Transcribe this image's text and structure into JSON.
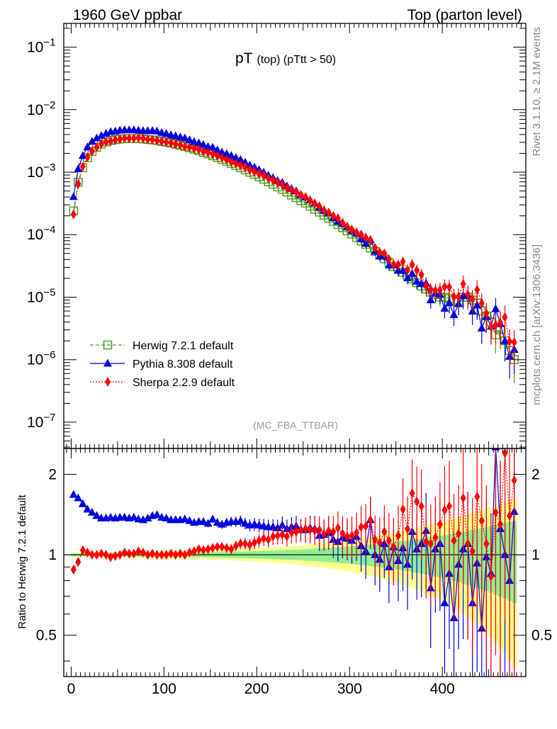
{
  "header": {
    "left_title": "1960 GeV ppbar",
    "right_title": "Top (parton level)"
  },
  "side_labels": {
    "version": "Rivet 3.1.10, ≥ 2.1M events",
    "source": "mcplots.cern.ch [arXiv:1306.3436]"
  },
  "chart_data": {
    "type": "line",
    "title_main": "pT",
    "title_sub": "(top) (pTtt > 50)",
    "analysis_tag": "(MC_FBA_TTBAR)",
    "x": [
      2.5,
      7.5,
      12.5,
      17.5,
      22.5,
      27.5,
      32.5,
      37.5,
      42.5,
      47.5,
      52.5,
      57.5,
      62.5,
      67.5,
      72.5,
      77.5,
      82.5,
      87.5,
      92.5,
      97.5,
      102.5,
      107.5,
      112.5,
      117.5,
      122.5,
      127.5,
      132.5,
      137.5,
      142.5,
      147.5,
      152.5,
      157.5,
      162.5,
      167.5,
      172.5,
      177.5,
      182.5,
      187.5,
      192.5,
      197.5,
      202.5,
      207.5,
      212.5,
      217.5,
      222.5,
      227.5,
      232.5,
      237.5,
      242.5,
      247.5,
      252.5,
      257.5,
      262.5,
      267.5,
      272.5,
      277.5,
      282.5,
      287.5,
      292.5,
      297.5,
      302.5,
      307.5,
      312.5,
      317.5,
      322.5,
      327.5,
      332.5,
      337.5,
      342.5,
      347.5,
      352.5,
      357.5,
      362.5,
      367.5,
      372.5,
      377.5,
      382.5,
      387.5,
      392.5,
      397.5,
      402.5,
      407.5,
      412.5,
      417.5,
      422.5,
      427.5,
      432.5,
      437.5,
      442.5,
      447.5,
      452.5,
      457.5,
      462.5,
      467.5,
      472.5,
      477.5
    ],
    "xlim": [
      -8,
      490
    ],
    "xticks": [
      0,
      100,
      200,
      300,
      400
    ],
    "main_panel": {
      "ylabel": "",
      "yscale": "log",
      "ylim": [
        3.8e-08,
        0.24
      ],
      "yticks": [
        {
          "value": 0.1,
          "label": "10",
          "exp": "−1"
        },
        {
          "value": 0.01,
          "label": "10",
          "exp": "−2"
        },
        {
          "value": 0.001,
          "label": "10",
          "exp": "−3"
        },
        {
          "value": 0.0001,
          "label": "10",
          "exp": "−4"
        },
        {
          "value": 1e-05,
          "label": "10",
          "exp": "−5"
        },
        {
          "value": 1e-06,
          "label": "10",
          "exp": "−6"
        },
        {
          "value": 1e-07,
          "label": "10",
          "exp": "−7"
        }
      ]
    },
    "ratio_panel": {
      "ylabel": "Ratio to Herwig 7.2.1 default",
      "yscale": "log",
      "ylim": [
        0.35,
        2.5
      ],
      "yticks": [
        {
          "value": 0.5,
          "label": "0.5"
        },
        {
          "value": 1,
          "label": "1"
        },
        {
          "value": 2,
          "label": "2"
        }
      ]
    },
    "series": [
      {
        "name": "Herwig 7.2.1 default",
        "color": "#4d9a1a",
        "line_style": "dashed",
        "marker": "open-square",
        "values": [
          0.00024,
          0.00069,
          0.00118,
          0.0017,
          0.00215,
          0.0025,
          0.0028,
          0.00304,
          0.0032,
          0.0033,
          0.00338,
          0.00342,
          0.00344,
          0.00344,
          0.00342,
          0.00339,
          0.00334,
          0.00328,
          0.0032,
          0.00311,
          0.00302,
          0.00291,
          0.0028,
          0.00269,
          0.00257,
          0.00245,
          0.00232,
          0.0022,
          0.00207,
          0.00195,
          0.00183,
          0.00171,
          0.0016,
          0.00149,
          0.00138,
          0.00128,
          0.00118,
          0.00109,
          0.001,
          0.00092,
          0.00084,
          0.00077,
          0.0007,
          0.00064,
          0.00058,
          0.00053,
          0.00048,
          0.00043,
          0.00039,
          0.00035,
          0.00032,
          0.000285,
          0.000255,
          0.00023,
          0.000205,
          0.000183,
          0.000163,
          0.000145,
          0.000129,
          0.000115,
          0.000102,
          9e-05,
          7.9e-05,
          7e-05,
          6.1e-05,
          5.4e-05,
          4.7e-05,
          4.1e-05,
          3.6e-05,
          3.1e-05,
          2.8e-05,
          2.5e-05,
          2.2e-05,
          1.95e-05,
          1.7e-05,
          1.5e-05,
          1.35e-05,
          1.2e-05,
          1.1e-05,
          1e-05,
          1e-05,
          9.5e-06,
          9e-06,
          8.5e-06,
          1e-05,
          1e-05,
          9e-06,
          8e-06,
          6e-06,
          5e-06,
          4e-06,
          2.5e-06,
          3e-06,
          2e-06,
          1.4e-06,
          1e-06
        ],
        "ratio": [
          1,
          1,
          1,
          1,
          1,
          1,
          1,
          1,
          1,
          1,
          1,
          1,
          1,
          1,
          1,
          1,
          1,
          1,
          1,
          1,
          1,
          1,
          1,
          1,
          1,
          1,
          1,
          1,
          1,
          1,
          1,
          1,
          1,
          1,
          1,
          1,
          1,
          1,
          1,
          1,
          1,
          1,
          1,
          1,
          1,
          1,
          1,
          1,
          1,
          1,
          1,
          1,
          1,
          1,
          1,
          1,
          1,
          1,
          1,
          1,
          1,
          1,
          1,
          1,
          1,
          1,
          1,
          1,
          1,
          1,
          1,
          1,
          1,
          1,
          1,
          1,
          1,
          1,
          1,
          1,
          1,
          1,
          1,
          1,
          1,
          1,
          1,
          1,
          1,
          1,
          1,
          1,
          1,
          1,
          1,
          1
        ]
      },
      {
        "name": "Pythia 8.308 default",
        "color": "#0000e0",
        "line_style": "solid",
        "marker": "filled-triangle",
        "ratio": [
          1.68,
          1.63,
          1.55,
          1.48,
          1.44,
          1.4,
          1.37,
          1.37,
          1.38,
          1.37,
          1.38,
          1.38,
          1.37,
          1.38,
          1.36,
          1.35,
          1.37,
          1.4,
          1.41,
          1.38,
          1.37,
          1.35,
          1.35,
          1.35,
          1.36,
          1.34,
          1.32,
          1.33,
          1.33,
          1.31,
          1.36,
          1.32,
          1.3,
          1.32,
          1.33,
          1.33,
          1.34,
          1.31,
          1.29,
          1.3,
          1.29,
          1.28,
          1.27,
          1.27,
          1.26,
          1.29,
          1.25,
          1.27,
          1.28,
          1.24,
          1.24,
          1.26,
          1.25,
          1.18,
          1.19,
          1.21,
          1.14,
          1.12,
          1.16,
          1.15,
          1.13,
          1.17,
          1.08,
          1.03,
          1.35,
          1.0,
          0.96,
          1.1,
          0.9,
          1.07,
          0.95,
          1.06,
          0.92,
          1.22,
          1.05,
          1.1,
          1.23,
          0.75,
          1.05,
          1.1,
          0.66,
          0.85,
          0.58,
          0.92,
          1.05,
          1.1,
          0.66,
          0.93,
          0.53,
          0.98,
          0.85,
          2.6,
          1.25,
          1.0,
          0.8,
          1.45
        ]
      },
      {
        "name": "Sherpa 2.2.9 default",
        "color": "#ff0000",
        "line_style": "dotted",
        "marker": "filled-diamond",
        "ratio": [
          0.88,
          0.94,
          1.04,
          1.02,
          1.0,
          1.0,
          1.01,
          1.0,
          0.98,
          0.99,
          1.0,
          1.02,
          1.01,
          1.01,
          1.03,
          1.02,
          1.0,
          1.01,
          1.0,
          1.0,
          1.0,
          1.01,
          1.0,
          1.01,
          1.0,
          1.02,
          1.03,
          1.05,
          1.04,
          1.05,
          1.06,
          1.07,
          1.07,
          1.06,
          1.05,
          1.08,
          1.1,
          1.1,
          1.09,
          1.11,
          1.13,
          1.15,
          1.14,
          1.17,
          1.18,
          1.19,
          1.17,
          1.21,
          1.22,
          1.24,
          1.25,
          1.24,
          1.23,
          1.24,
          1.2,
          1.23,
          1.22,
          1.26,
          1.2,
          1.17,
          1.18,
          1.21,
          1.27,
          1.28,
          1.35,
          1.14,
          1.11,
          1.22,
          1.13,
          1.07,
          1.18,
          1.48,
          1.25,
          1.7,
          1.58,
          1.52,
          1.12,
          1.1,
          1.16,
          1.3,
          1.47,
          1.52,
          1.13,
          1.2,
          1.63,
          1.1,
          1.03,
          1.65,
          1.34,
          1.1,
          0.83,
          1.44,
          1.3,
          2.4,
          1.4,
          1.9
        ]
      }
    ],
    "legend": {
      "position": "lower-left",
      "entries": [
        "Herwig 7.2.1 default",
        "Pythia 8.308 default",
        "Sherpa 2.2.9 default"
      ]
    },
    "uncertainty_bands": [
      {
        "name": "inner band",
        "color": "#90ee90"
      },
      {
        "name": "outer band",
        "color": "#ffff90"
      }
    ]
  }
}
